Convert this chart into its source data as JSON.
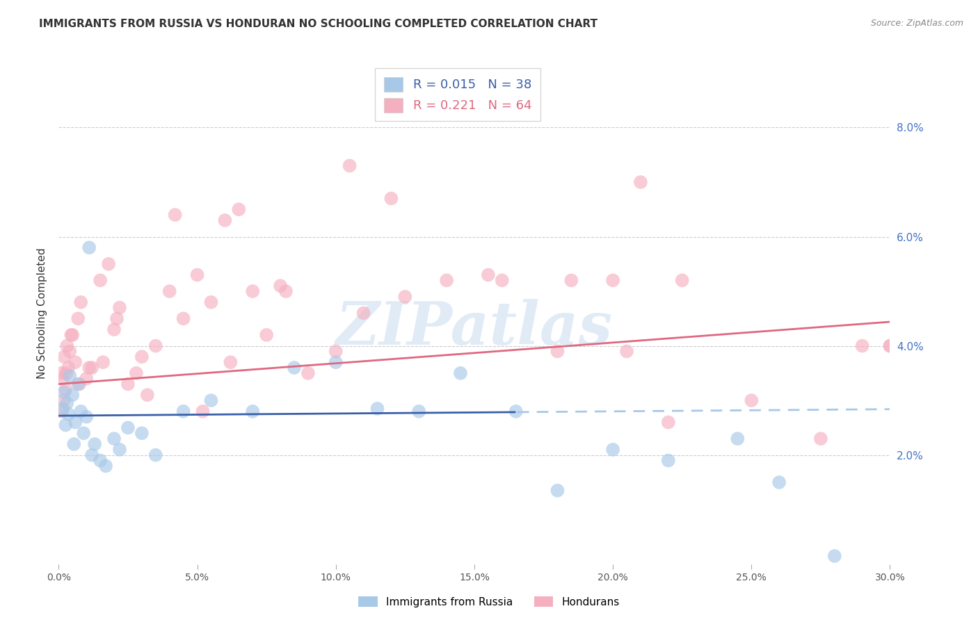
{
  "title": "IMMIGRANTS FROM RUSSIA VS HONDURAN NO SCHOOLING COMPLETED CORRELATION CHART",
  "source": "Source: ZipAtlas.com",
  "ylabel": "No Schooling Completed",
  "x_tick_labels": [
    "0.0%",
    "5.0%",
    "10.0%",
    "15.0%",
    "20.0%",
    "25.0%",
    "30.0%"
  ],
  "x_tick_vals": [
    0,
    5,
    10,
    15,
    20,
    25,
    30
  ],
  "y_tick_labels": [
    "2.0%",
    "4.0%",
    "6.0%",
    "8.0%"
  ],
  "y_tick_vals": [
    2,
    4,
    6,
    8
  ],
  "xlim": [
    0,
    30
  ],
  "ylim": [
    0,
    9.2
  ],
  "legend_label1": "Immigrants from Russia",
  "legend_label2": "Hondurans",
  "legend_color1": "#a8c8e8",
  "legend_color2": "#f5b0c0",
  "watermark": "ZIPatlas",
  "watermark_color": "#c5d8ee",
  "russia_line_color": "#3a5fa8",
  "honduran_line_color": "#e06880",
  "russia_dashed_color": "#a8c8e8",
  "russia_R": 0.015,
  "russia_N": 38,
  "honduran_R": 0.221,
  "honduran_N": 64,
  "russia_line_intercept": 2.72,
  "russia_line_slope": 0.004,
  "russia_solid_end_x": 16.5,
  "honduran_line_intercept": 3.3,
  "honduran_line_slope": 0.038,
  "russia_x": [
    0.15,
    0.2,
    0.25,
    0.3,
    0.35,
    0.4,
    0.5,
    0.55,
    0.6,
    0.7,
    0.8,
    0.9,
    1.0,
    1.1,
    1.2,
    1.3,
    1.5,
    1.7,
    2.0,
    2.2,
    2.5,
    3.0,
    3.5,
    4.5,
    5.5,
    7.0,
    8.5,
    10.0,
    11.5,
    13.0,
    14.5,
    16.5,
    18.0,
    20.0,
    22.0,
    24.5,
    26.0,
    28.0
  ],
  "russia_y": [
    2.85,
    3.15,
    2.55,
    2.95,
    2.75,
    3.45,
    3.1,
    2.2,
    2.6,
    3.3,
    2.8,
    2.4,
    2.7,
    5.8,
    2.0,
    2.2,
    1.9,
    1.8,
    2.3,
    2.1,
    2.5,
    2.4,
    2.0,
    2.8,
    3.0,
    2.8,
    3.6,
    3.7,
    2.85,
    2.8,
    3.5,
    2.8,
    1.35,
    2.1,
    1.9,
    2.3,
    1.5,
    0.15
  ],
  "honduran_x": [
    0.1,
    0.15,
    0.2,
    0.25,
    0.3,
    0.35,
    0.4,
    0.5,
    0.6,
    0.7,
    0.8,
    1.0,
    1.2,
    1.5,
    1.8,
    2.0,
    2.2,
    2.5,
    2.8,
    3.0,
    3.5,
    4.0,
    4.5,
    5.0,
    5.5,
    6.0,
    6.5,
    7.0,
    7.5,
    8.0,
    9.0,
    10.0,
    11.0,
    12.0,
    14.0,
    16.0,
    18.0,
    20.0,
    21.0,
    22.0,
    25.0,
    29.0,
    30.0,
    0.12,
    0.18,
    0.28,
    0.45,
    0.75,
    1.1,
    1.6,
    2.1,
    3.2,
    4.2,
    5.2,
    6.2,
    8.2,
    10.5,
    15.5,
    18.5,
    20.5,
    22.5,
    27.5,
    30.0,
    12.5
  ],
  "honduran_y": [
    3.5,
    3.4,
    3.8,
    3.2,
    4.0,
    3.6,
    3.9,
    4.2,
    3.7,
    4.5,
    4.8,
    3.4,
    3.6,
    5.2,
    5.5,
    4.3,
    4.7,
    3.3,
    3.5,
    3.8,
    4.0,
    5.0,
    4.5,
    5.3,
    4.8,
    6.3,
    6.5,
    5.0,
    4.2,
    5.1,
    3.5,
    3.9,
    4.6,
    6.7,
    5.2,
    5.2,
    3.9,
    5.2,
    7.0,
    2.6,
    3.0,
    4.0,
    4.0,
    2.8,
    3.0,
    3.5,
    4.2,
    3.3,
    3.6,
    3.7,
    4.5,
    3.1,
    6.4,
    2.8,
    3.7,
    5.0,
    7.3,
    5.3,
    5.2,
    3.9,
    5.2,
    2.3,
    4.0,
    4.9
  ]
}
